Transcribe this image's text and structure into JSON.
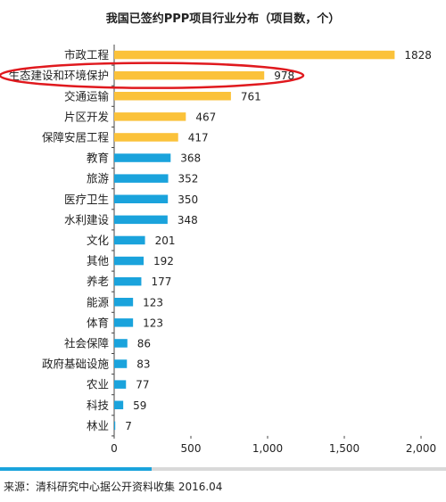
{
  "colors": {
    "highlight": "#fbc23a",
    "normal": "#1aa3dc",
    "circle": "#e0191e",
    "axis": "#444444"
  },
  "chart_data": {
    "type": "bar",
    "orientation": "horizontal",
    "title": "我国已签约PPP项目行业分布（项目数，个）",
    "categories": [
      "市政工程",
      "生态建设和环境保护",
      "交通运输",
      "片区开发",
      "保障安居工程",
      "教育",
      "旅游",
      "医疗卫生",
      "水利建设",
      "文化",
      "其他",
      "养老",
      "能源",
      "体育",
      "社会保障",
      "政府基础设施",
      "农业",
      "科技",
      "林业"
    ],
    "values": [
      1828,
      978,
      761,
      467,
      417,
      368,
      352,
      350,
      348,
      201,
      192,
      177,
      123,
      123,
      86,
      83,
      77,
      59,
      7
    ],
    "highlighted_count": 5,
    "circled_category": "生态建设和环境保护",
    "xlim": [
      0,
      2000
    ],
    "xticks": [
      "0",
      "500",
      "1,000",
      "1,500",
      "2,000"
    ],
    "grid": false
  },
  "progress": {
    "fraction": 0.34
  },
  "source": "来源：清科研究中心据公开资料收集 2016.04"
}
